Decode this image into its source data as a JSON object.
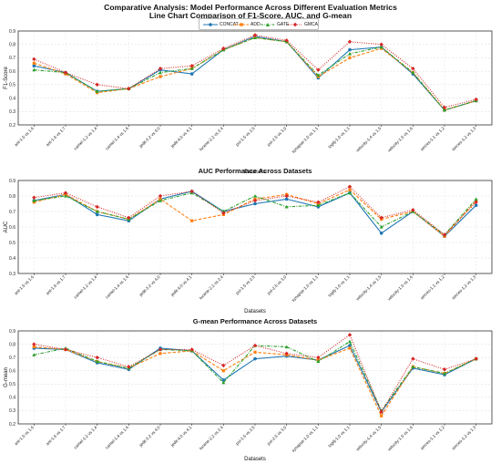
{
  "figure": {
    "title": "Comparative Analysis: Model Performance Across Different Evaluation Metrics",
    "subtitle": "Line Chart Comparison of F1-Score, AUC, and G-mean"
  },
  "legend": {
    "placement": "top-center",
    "entries": [
      {
        "name": "CONCAT",
        "color": "#1f77b4",
        "marker": "circle",
        "dash": "solid"
      },
      {
        "name": "ADD",
        "color": "#ff7f0e",
        "marker": "square",
        "dash": "dashed"
      },
      {
        "name": "GATE",
        "color": "#2ca02c",
        "marker": "triangle",
        "dash": "dashdot"
      },
      {
        "name": "GMCA",
        "color": "#d62728",
        "marker": "diamond",
        "dash": "dotted"
      }
    ]
  },
  "chart_data": [
    {
      "type": "line",
      "title": "",
      "xlabel": "Datasets",
      "ylabel": "F1-Score",
      "ylim": [
        0.2,
        0.9
      ],
      "yticks": [
        "0.2",
        "0.3",
        "0.4",
        "0.5",
        "0.6",
        "0.7",
        "0.8",
        "0.9"
      ],
      "grid": true,
      "categories": [
        "ant-1.5 vs 1.6",
        "ant-1.6 vs 1.7",
        "camel-1.2 vs 1.4",
        "camel-1.4 vs 1.6",
        "jedit-3.2 vs 4.0",
        "jedit-4.0 vs 4.1",
        "lucene-2.2 vs 2.4",
        "poi-1.5 vs 2.5",
        "poi-2.5 vs 3.0",
        "synapse-1.0 vs 1.1",
        "log4j-1.0 vs 1.1",
        "velocity-1.4 vs 1.5",
        "velocity-1.5 vs 1.6",
        "xerces-1.1 vs 1.2",
        "xerces-1.2 vs 1.3"
      ],
      "series": [
        {
          "name": "CONCAT",
          "values": [
            0.64,
            0.59,
            0.45,
            0.47,
            0.61,
            0.58,
            0.76,
            0.86,
            0.82,
            0.55,
            0.76,
            0.78,
            0.58,
            0.31,
            0.38
          ]
        },
        {
          "name": "ADD",
          "values": [
            0.66,
            0.58,
            0.44,
            0.47,
            0.56,
            0.62,
            0.76,
            0.85,
            0.82,
            0.56,
            0.7,
            0.77,
            0.59,
            0.31,
            0.38
          ]
        },
        {
          "name": "GATE",
          "values": [
            0.61,
            0.59,
            0.45,
            0.47,
            0.59,
            0.62,
            0.76,
            0.85,
            0.82,
            0.57,
            0.73,
            0.78,
            0.59,
            0.31,
            0.38
          ]
        },
        {
          "name": "GMCA",
          "values": [
            0.69,
            0.59,
            0.5,
            0.47,
            0.62,
            0.64,
            0.77,
            0.87,
            0.83,
            0.61,
            0.82,
            0.8,
            0.62,
            0.33,
            0.39
          ]
        }
      ]
    },
    {
      "type": "line",
      "title": "AUC Performance Across Datasets",
      "xlabel": "Datasets",
      "ylabel": "AUC",
      "ylim": [
        0.3,
        0.9
      ],
      "yticks": [
        "0.3",
        "0.4",
        "0.5",
        "0.6",
        "0.7",
        "0.8",
        "0.9"
      ],
      "grid": true,
      "categories": [
        "ant-1.5 vs 1.6",
        "ant-1.6 vs 1.7",
        "camel-1.2 vs 1.4",
        "camel-1.4 vs 1.6",
        "jedit-3.2 vs 4.0",
        "jedit-4.0 vs 4.1",
        "lucene-2.2 vs 2.4",
        "poi-1.5 vs 2.5",
        "poi-2.5 vs 3.0",
        "synapse-1.0 vs 1.1",
        "log4j-1.0 vs 1.1",
        "velocity-1.4 vs 1.5",
        "velocity-1.5 vs 1.6",
        "xerces-1.1 vs 1.2",
        "xerces-1.2 vs 1.3"
      ],
      "series": [
        {
          "name": "CONCAT",
          "values": [
            0.77,
            0.81,
            0.68,
            0.64,
            0.78,
            0.83,
            0.7,
            0.75,
            0.78,
            0.73,
            0.82,
            0.56,
            0.7,
            0.54,
            0.74
          ]
        },
        {
          "name": "ADD",
          "values": [
            0.76,
            0.81,
            0.7,
            0.65,
            0.78,
            0.64,
            0.68,
            0.78,
            0.81,
            0.75,
            0.84,
            0.65,
            0.7,
            0.54,
            0.77
          ]
        },
        {
          "name": "GATE",
          "values": [
            0.77,
            0.8,
            0.7,
            0.65,
            0.77,
            0.82,
            0.7,
            0.8,
            0.73,
            0.74,
            0.82,
            0.6,
            0.7,
            0.55,
            0.78
          ]
        },
        {
          "name": "GMCA",
          "values": [
            0.79,
            0.82,
            0.73,
            0.66,
            0.8,
            0.83,
            0.69,
            0.77,
            0.8,
            0.76,
            0.86,
            0.66,
            0.71,
            0.55,
            0.76
          ]
        }
      ]
    },
    {
      "type": "line",
      "title": "G-mean Performance Across Datasets",
      "xlabel": "Datasets",
      "ylabel": "G-mean",
      "ylim": [
        0.2,
        0.9
      ],
      "yticks": [
        "0.2",
        "0.3",
        "0.4",
        "0.5",
        "0.6",
        "0.7",
        "0.8",
        "0.9"
      ],
      "grid": true,
      "categories": [
        "ant-1.5 vs 1.6",
        "ant-1.6 vs 1.7",
        "camel-1.2 vs 1.4",
        "camel-1.4 vs 1.6",
        "jedit-3.2 vs 4.0",
        "jedit-4.0 vs 4.1",
        "lucene-2.2 vs 2.4",
        "poi-1.5 vs 2.5",
        "poi-2.5 vs 3.0",
        "synapse-1.0 vs 1.1",
        "log4j-1.0 vs 1.1",
        "velocity-1.4 vs 1.5",
        "velocity-1.5 vs 1.6",
        "xerces-1.1 vs 1.2",
        "xerces-1.2 vs 1.3"
      ],
      "series": [
        {
          "name": "CONCAT",
          "values": [
            0.77,
            0.76,
            0.66,
            0.61,
            0.77,
            0.75,
            0.53,
            0.69,
            0.71,
            0.68,
            0.79,
            0.29,
            0.62,
            0.57,
            0.69
          ]
        },
        {
          "name": "ADD",
          "values": [
            0.78,
            0.76,
            0.67,
            0.62,
            0.73,
            0.75,
            0.6,
            0.74,
            0.72,
            0.68,
            0.77,
            0.26,
            0.63,
            0.58,
            0.69
          ]
        },
        {
          "name": "GATE",
          "values": [
            0.72,
            0.77,
            0.67,
            0.62,
            0.76,
            0.75,
            0.51,
            0.79,
            0.78,
            0.67,
            0.82,
            0.3,
            0.63,
            0.58,
            0.69
          ]
        },
        {
          "name": "GMCA",
          "values": [
            0.8,
            0.76,
            0.7,
            0.63,
            0.76,
            0.76,
            0.64,
            0.79,
            0.73,
            0.7,
            0.87,
            0.29,
            0.69,
            0.61,
            0.69
          ]
        }
      ]
    }
  ]
}
